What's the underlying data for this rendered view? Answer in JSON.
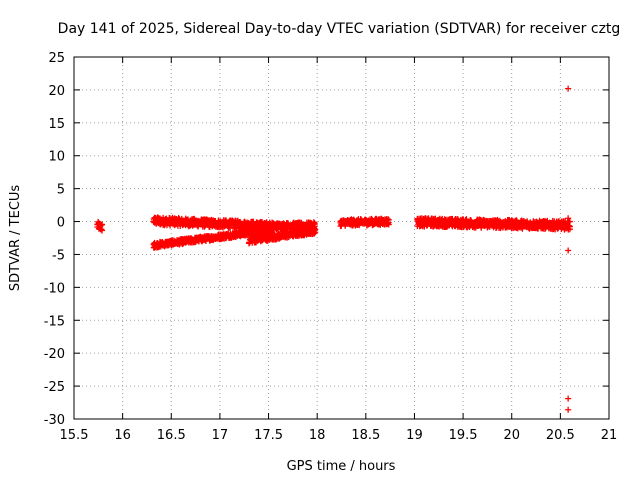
{
  "chart_data": {
    "type": "scatter",
    "title": "Day 141 of 2025, Sidereal Day-to-day VTEC variation (SDTVAR) for receiver cztg",
    "xlabel": "GPS time / hours",
    "ylabel": "SDTVAR / TECUs",
    "xlim": [
      15.5,
      21
    ],
    "ylim": [
      -30,
      25
    ],
    "xticks": [
      15.5,
      16,
      16.5,
      17,
      17.5,
      18,
      18.5,
      19,
      19.5,
      20,
      20.5,
      21
    ],
    "xtick_labels": [
      "15.5",
      "16",
      "16.5",
      "17",
      "17.5",
      "18",
      "18.5",
      "19",
      "19.5",
      "20",
      "20.5",
      "21"
    ],
    "yticks": [
      25,
      20,
      15,
      10,
      5,
      0,
      -5,
      -10,
      -15,
      -20,
      -25,
      -30
    ],
    "ytick_labels": [
      "25",
      "20",
      "15",
      "10",
      "5",
      "0",
      "-5",
      "-10",
      "-15",
      "-20",
      "-25",
      "-30"
    ],
    "grid": true,
    "marker": "+",
    "color": "#ff0000",
    "series": [
      {
        "name": "SDTVAR",
        "segments": [
          {
            "x_start": 15.74,
            "x_end": 15.79,
            "y_start": -0.6,
            "y_end": -0.9,
            "spread": 1.2
          },
          {
            "x_start": 16.32,
            "x_end": 17.55,
            "y_start": 0.1,
            "y_end": -0.7,
            "spread": 1.2
          },
          {
            "x_start": 16.32,
            "x_end": 16.9,
            "y_start": -3.6,
            "y_end": -2.5,
            "spread": 0.8
          },
          {
            "x_start": 16.9,
            "x_end": 17.55,
            "y_start": -2.5,
            "y_end": -1.2,
            "spread": 0.8
          },
          {
            "x_start": 17.3,
            "x_end": 17.98,
            "y_start": -2.9,
            "y_end": -1.4,
            "spread": 0.9
          },
          {
            "x_start": 17.55,
            "x_end": 17.98,
            "y_start": -0.7,
            "y_end": -0.6,
            "spread": 1.0
          },
          {
            "x_start": 18.24,
            "x_end": 18.74,
            "y_start": -0.2,
            "y_end": 0.0,
            "spread": 1.0
          },
          {
            "x_start": 19.03,
            "x_end": 20.6,
            "y_start": -0.1,
            "y_end": -0.6,
            "spread": 1.3
          }
        ],
        "points": [
          {
            "x": 20.58,
            "y": 20.2
          },
          {
            "x": 20.58,
            "y": 0.5
          },
          {
            "x": 20.58,
            "y": -4.4
          },
          {
            "x": 20.58,
            "y": -26.9
          },
          {
            "x": 20.58,
            "y": -28.6
          }
        ]
      }
    ]
  }
}
